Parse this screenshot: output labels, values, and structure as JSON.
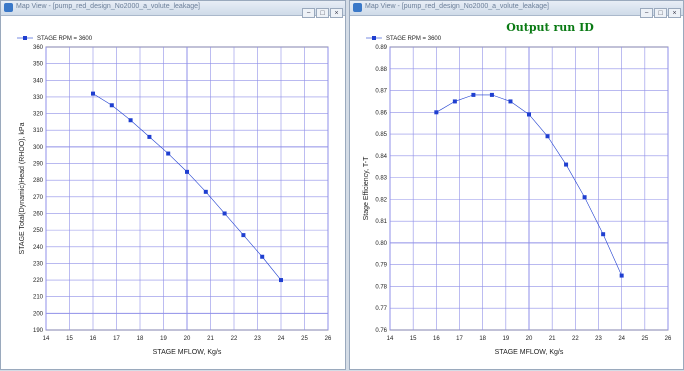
{
  "windows": [
    {
      "title": "Map View - [pump_red_design_No2000_a_volute_leakage]",
      "buttons": [
        "−",
        "□",
        "×"
      ]
    },
    {
      "title": "Map View - [pump_red_design_No2000_a_volute_leakage]",
      "buttons": [
        "−",
        "□",
        "×"
      ]
    }
  ],
  "colors": {
    "series": "#1f3fd0",
    "grid": "#8f8fe8",
    "title": "#0a7a14"
  },
  "chart_data": [
    {
      "type": "line",
      "title": "",
      "xlabel": "STAGE MFLOW, Kg/s",
      "ylabel": "STAGE Total(Dynamic)Head (RHOO), kPa",
      "xlim": [
        14,
        26
      ],
      "ylim": [
        190,
        360
      ],
      "xticks": [
        14,
        15,
        16,
        17,
        18,
        19,
        20,
        21,
        22,
        23,
        24,
        25,
        26
      ],
      "yticks": [
        190,
        200,
        210,
        220,
        230,
        240,
        250,
        260,
        270,
        280,
        290,
        300,
        310,
        320,
        330,
        340,
        350,
        360
      ],
      "xtick_labels": [
        "14",
        "15",
        "16",
        "17",
        "18",
        "19",
        "20",
        "21",
        "22",
        "23",
        "24",
        "25",
        "26"
      ],
      "ytick_labels": [
        "190",
        "200",
        "210",
        "220",
        "230",
        "240",
        "250",
        "260",
        "270",
        "280",
        "290",
        "300",
        "310",
        "320",
        "330",
        "340",
        "350",
        "360"
      ],
      "major_gridx": [
        14,
        20,
        26
      ],
      "major_gridy": [
        200,
        300
      ],
      "legend": "top-left",
      "series": [
        {
          "name": "STAGE RPM = 3600",
          "x": [
            16.0,
            16.8,
            17.6,
            18.4,
            19.2,
            20.0,
            20.8,
            21.6,
            22.4,
            23.2,
            24.0
          ],
          "y": [
            332,
            325,
            316,
            306,
            296,
            285,
            273,
            260,
            247,
            234,
            220
          ]
        }
      ]
    },
    {
      "type": "line",
      "title": "Output run ID",
      "xlabel": "STAGE MFLOW, Kg/s",
      "ylabel": "Stage Efficiency, T-T",
      "xlim": [
        14,
        26
      ],
      "ylim": [
        0.76,
        0.89
      ],
      "xticks": [
        14,
        15,
        16,
        17,
        18,
        19,
        20,
        21,
        22,
        23,
        24,
        25,
        26
      ],
      "yticks": [
        0.76,
        0.77,
        0.78,
        0.79,
        0.8,
        0.81,
        0.82,
        0.83,
        0.84,
        0.85,
        0.86,
        0.87,
        0.88,
        0.89
      ],
      "xtick_labels": [
        "14",
        "15",
        "16",
        "17",
        "18",
        "19",
        "20",
        "21",
        "22",
        "23",
        "24",
        "25",
        "26"
      ],
      "ytick_labels": [
        "0.76",
        "0.77",
        "0.78",
        "0.79",
        "0.80",
        "0.81",
        "0.82",
        "0.83",
        "0.84",
        "0.85",
        "0.86",
        "0.87",
        "0.88",
        "0.89"
      ],
      "major_gridx": [
        14,
        20,
        26
      ],
      "major_gridy": [
        0.8
      ],
      "legend": "top-left",
      "series": [
        {
          "name": "STAGE RPM = 3600",
          "x": [
            16.0,
            16.8,
            17.6,
            18.4,
            19.2,
            20.0,
            20.8,
            21.6,
            22.4,
            23.2,
            24.0
          ],
          "y": [
            0.86,
            0.865,
            0.868,
            0.868,
            0.865,
            0.859,
            0.849,
            0.836,
            0.821,
            0.804,
            0.785
          ]
        }
      ]
    }
  ]
}
